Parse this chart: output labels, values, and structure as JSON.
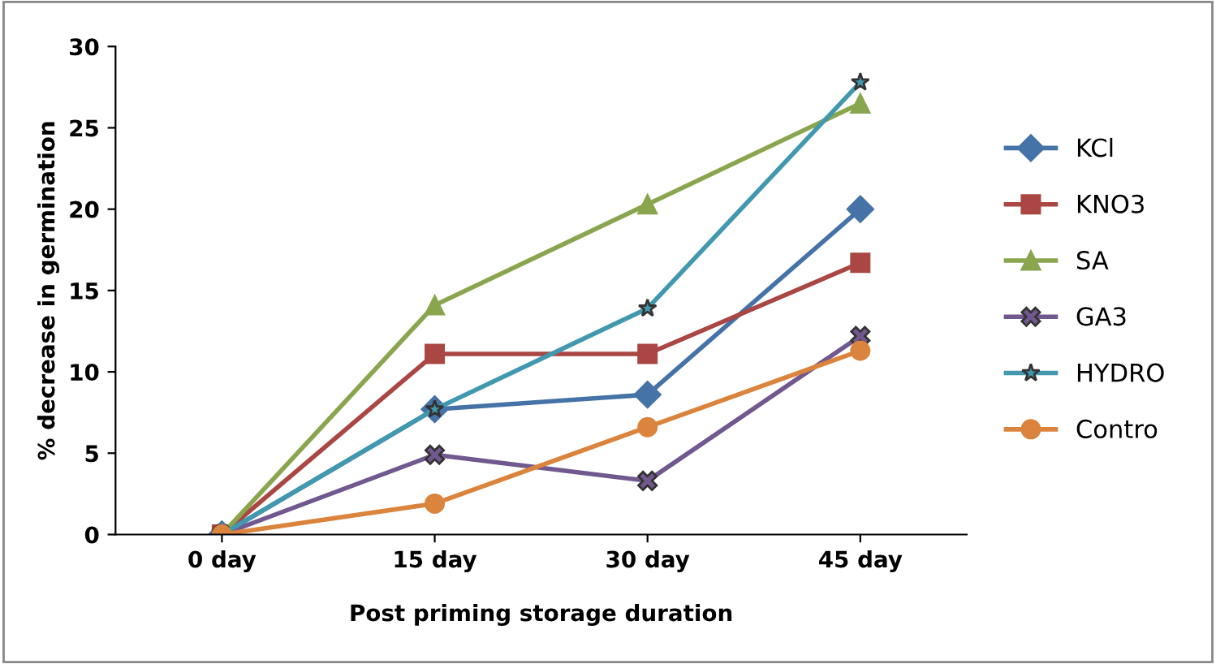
{
  "chart_data": {
    "type": "line",
    "xlabel": "Post priming storage duration",
    "ylabel": "% decrease in germination",
    "categories": [
      "0 day",
      "15 day",
      "30 day",
      "45 day"
    ],
    "series": [
      {
        "name": "KCl",
        "color": "#4572a7",
        "marker": "diamond",
        "values": [
          0,
          7.7,
          8.6,
          20
        ]
      },
      {
        "name": "KNO3",
        "color": "#aa4643",
        "marker": "square",
        "values": [
          0,
          11.1,
          11.1,
          16.7
        ]
      },
      {
        "name": "SA",
        "color": "#89a54e",
        "marker": "triangle",
        "values": [
          0,
          14.1,
          20.3,
          26.5
        ]
      },
      {
        "name": "GA3",
        "color": "#71588f",
        "marker": "cross",
        "values": [
          0,
          4.9,
          3.3,
          12.2
        ]
      },
      {
        "name": "HYDRO",
        "color": "#4198af",
        "marker": "star",
        "values": [
          0,
          7.7,
          13.9,
          27.8
        ]
      },
      {
        "name": "Contro",
        "color": "#db843d",
        "marker": "circle",
        "values": [
          0,
          1.9,
          6.6,
          11.3
        ]
      }
    ],
    "ylim": [
      0,
      30
    ],
    "yticks": [
      0,
      5,
      10,
      15,
      20,
      25,
      30
    ],
    "grid": false,
    "legend": "right",
    "line_style": "solid"
  }
}
